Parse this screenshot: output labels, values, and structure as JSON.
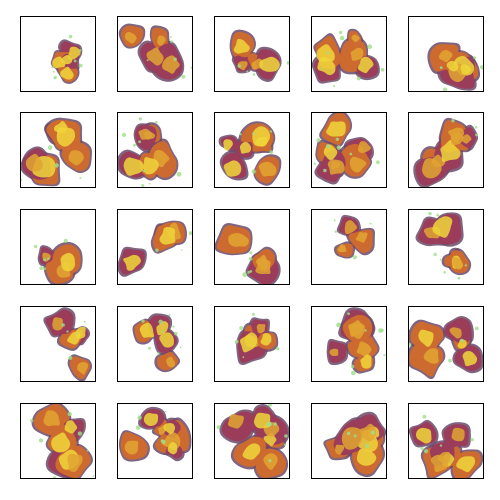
{
  "figure": {
    "rows": 5,
    "columns": 5,
    "sample_count": 25,
    "palette": {
      "background": "#ffffff",
      "frame": "#000000",
      "edge": "#6a4a6a",
      "dark": "#9a3c5a",
      "mid": "#cc6a30",
      "light": "#e0a431",
      "bright": "#eed63a",
      "speck": "#9ee08a"
    }
  }
}
